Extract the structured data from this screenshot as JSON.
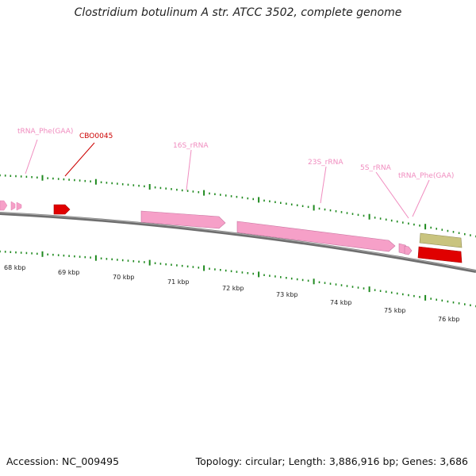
{
  "title": "Clostridium botulinum A str. ATCC 3502, complete genome",
  "footer": {
    "accession": "Accession: NC_009495",
    "summary": "Topology: circular; Length: 3,886,916 bp; Genes: 3,686"
  },
  "colors": {
    "backbone": "#7a7a7a",
    "tick": "#1f8a1f",
    "rrna": "#f6a0c8",
    "cds": "#e00000",
    "trna_label": "#f08cbf",
    "cds_label": "#cc0000",
    "olive": "#c9c47f"
  },
  "scale": {
    "unit": "kbp",
    "labels": [
      "68 kbp",
      "69 kbp",
      "70 kbp",
      "71 kbp",
      "72 kbp",
      "73 kbp",
      "74 kbp",
      "75 kbp",
      "76 kbp"
    ]
  },
  "features": [
    {
      "label": "tRNA_Phe(GAA)",
      "type": "tRNA"
    },
    {
      "label": "CBO0045",
      "type": "CDS"
    },
    {
      "label": "16S_rRNA",
      "type": "rRNA"
    },
    {
      "label": "23S_rRNA",
      "type": "rRNA"
    },
    {
      "label": "5S_rRNA",
      "type": "rRNA"
    },
    {
      "label": "tRNA_Phe(GAA)",
      "type": "tRNA"
    }
  ]
}
